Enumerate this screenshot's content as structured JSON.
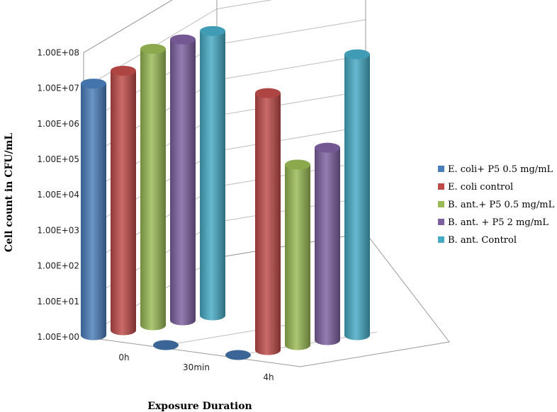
{
  "chart_data": {
    "type": "bar",
    "subtype": "3d-cylinder",
    "title": "",
    "xlabel": "Exposure Duration",
    "ylabel": "Cell count in CFU/mL",
    "y_scale": "log",
    "ylim": [
      1,
      100000000
    ],
    "y_ticks": [
      "1.00E+00",
      "1.00E+01",
      "1.00E+02",
      "1.00E+03",
      "1.00E+04",
      "1.00E+05",
      "1.00E+06",
      "1.00E+07",
      "1.00E+08"
    ],
    "categories": [
      "0h",
      "30min",
      "4h"
    ],
    "legend_position": "right",
    "grid": true,
    "series": [
      {
        "name": "E. coli+ P5 0.5 mg/mL",
        "color": "#4a7ebb",
        "values": [
          12000000,
          1,
          1
        ]
      },
      {
        "name": "E. coli control",
        "color": "#be4b48",
        "values": [
          20000000,
          null,
          17000000
        ]
      },
      {
        "name": "B. ant.+ P5 0.5 mg/mL",
        "color": "#98b954",
        "values": [
          60000000,
          null,
          120000
        ]
      },
      {
        "name": "B. ant. + P5 2 mg/mL",
        "color": "#7d60a0",
        "values": [
          80000000,
          null,
          260000
        ]
      },
      {
        "name": "B. ant. Control",
        "color": "#46aac5",
        "values": [
          100000000,
          null,
          80000000
        ]
      }
    ]
  }
}
